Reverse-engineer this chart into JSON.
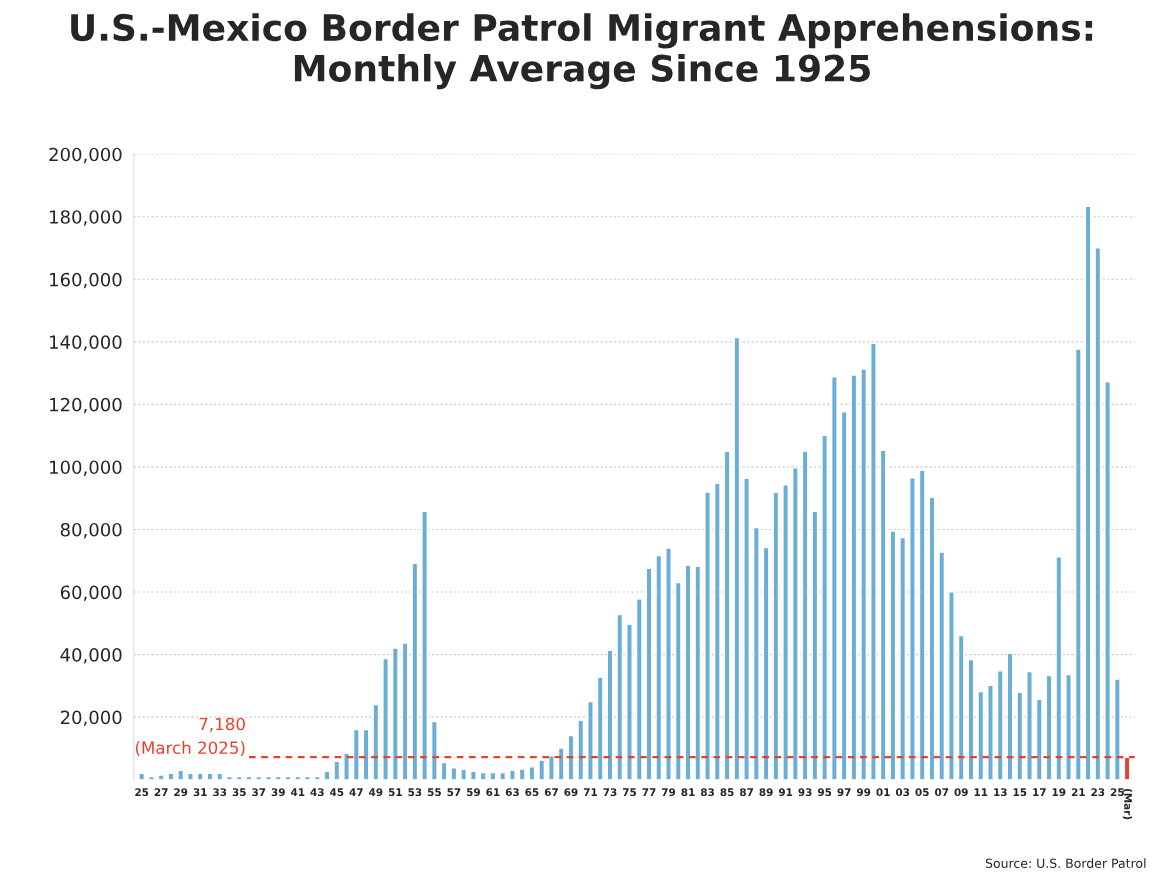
{
  "chart_data": {
    "type": "bar",
    "title": "U.S.-Mexico Border Patrol Migrant Apprehensions: Monthly Average Since 1925",
    "categories": [
      "25",
      null,
      "27",
      null,
      "29",
      null,
      "31",
      null,
      "33",
      null,
      "35",
      null,
      "37",
      null,
      "39",
      null,
      "41",
      null,
      "43",
      null,
      "45",
      null,
      "47",
      null,
      "49",
      null,
      "51",
      null,
      "53",
      null,
      "55",
      null,
      "57",
      null,
      "59",
      null,
      "61",
      null,
      "63",
      null,
      "65",
      null,
      "67",
      null,
      "69",
      null,
      "71",
      null,
      "73",
      null,
      "75",
      null,
      "77",
      null,
      "79",
      null,
      "81",
      null,
      "83",
      null,
      "85",
      null,
      "87",
      null,
      "89",
      null,
      "91",
      null,
      "93",
      null,
      "95",
      null,
      "97",
      null,
      "99",
      null,
      "01",
      null,
      "03",
      null,
      "05",
      null,
      "07",
      null,
      "09",
      null,
      "11",
      null,
      "13",
      null,
      "15",
      null,
      "17",
      null,
      "19",
      null,
      "21",
      null,
      "23",
      null,
      "25",
      "(Mar)"
    ],
    "values": [
      2000,
      1000,
      1500,
      2000,
      3000,
      2000,
      2000,
      2000,
      2000,
      1000,
      1000,
      1000,
      1000,
      1000,
      1000,
      1000,
      1000,
      1000,
      1000,
      2700,
      5900,
      8400,
      16000,
      16000,
      24000,
      38700,
      42100,
      43700,
      69200,
      85800,
      18600,
      5500,
      3800,
      3300,
      2700,
      2300,
      2300,
      2300,
      3000,
      3400,
      4100,
      6300,
      7600,
      10100,
      14100,
      19000,
      25000,
      32800,
      41400,
      52800,
      49700,
      57800,
      67600,
      71700,
      74100,
      63000,
      68600,
      68200,
      92000,
      94800,
      105000,
      141400,
      96400,
      80600,
      74200,
      91900,
      94300,
      99700,
      105100,
      85800,
      110100,
      128800,
      117600,
      129400,
      131300,
      139500,
      105300,
      79500,
      77400,
      96500,
      98900,
      90300,
      72800,
      60100,
      46100,
      38400,
      28200,
      30200,
      34800,
      40400,
      27900,
      34600,
      25700,
      33300,
      71300,
      33600,
      137700,
      183300,
      170100,
      127200,
      32200,
      7180
    ],
    "colors": [
      "#6aaed6",
      "#6aaed6",
      "#6aaed6",
      "#6aaed6",
      "#6aaed6",
      "#6aaed6",
      "#6aaed6",
      "#6aaed6",
      "#6aaed6",
      "#6aaed6",
      "#6aaed6",
      "#6aaed6",
      "#6aaed6",
      "#6aaed6",
      "#6aaed6",
      "#6aaed6",
      "#6aaed6",
      "#6aaed6",
      "#6aaed6",
      "#6aaed6",
      "#6aaed6",
      "#6aaed6",
      "#6aaed6",
      "#6aaed6",
      "#6aaed6",
      "#6aaed6",
      "#6aaed6",
      "#6aaed6",
      "#6aaed6",
      "#6aaed6",
      "#6aaed6",
      "#6aaed6",
      "#6aaed6",
      "#6aaed6",
      "#6aaed6",
      "#6aaed6",
      "#6aaed6",
      "#6aaed6",
      "#6aaed6",
      "#6aaed6",
      "#6aaed6",
      "#6aaed6",
      "#6aaed6",
      "#6aaed6",
      "#6aaed6",
      "#6aaed6",
      "#6aaed6",
      "#6aaed6",
      "#6aaed6",
      "#6aaed6",
      "#6aaed6",
      "#6aaed6",
      "#6aaed6",
      "#6aaed6",
      "#6aaed6",
      "#6aaed6",
      "#6aaed6",
      "#6aaed6",
      "#6aaed6",
      "#6aaed6",
      "#6aaed6",
      "#6aaed6",
      "#6aaed6",
      "#6aaed6",
      "#6aaed6",
      "#6aaed6",
      "#6aaed6",
      "#6aaed6",
      "#6aaed6",
      "#6aaed6",
      "#6aaed6",
      "#6aaed6",
      "#6aaed6",
      "#6aaed6",
      "#6aaed6",
      "#6aaed6",
      "#6aaed6",
      "#6aaed6",
      "#6aaed6",
      "#6aaed6",
      "#6aaed6",
      "#6aaed6",
      "#6aaed6",
      "#6aaed6",
      "#6aaed6",
      "#6aaed6",
      "#6aaed6",
      "#6aaed6",
      "#6aaed6",
      "#6aaed6",
      "#6aaed6",
      "#6aaed6",
      "#6aaed6",
      "#6aaed6",
      "#6aaed6",
      "#6aaed6",
      "#6aaed6",
      "#6aaed6",
      "#6aaed6",
      "#6aaed6",
      "#6aaed6",
      "#e8402e"
    ],
    "ylim": [
      0,
      200000
    ],
    "yticks": [
      {
        "value": 20000,
        "label": "20,000"
      },
      {
        "value": 40000,
        "label": "40,000"
      },
      {
        "value": 60000,
        "label": "60,000"
      },
      {
        "value": 80000,
        "label": "80,000"
      },
      {
        "value": 100000,
        "label": "100,000"
      },
      {
        "value": 120000,
        "label": "120,000"
      },
      {
        "value": 140000,
        "label": "140,000"
      },
      {
        "value": 160000,
        "label": "160,000"
      },
      {
        "value": 180000,
        "label": "180,000"
      },
      {
        "value": 200000,
        "label": "200,000"
      }
    ],
    "grid": "y",
    "ref_lines": [
      {
        "axis": "y",
        "value": 7180,
        "label": "7,180\n(March 2025)",
        "color": "#e8402e",
        "line_style": "dashed"
      }
    ],
    "annotations": [
      "Source: U.S. Border Patrol"
    ]
  }
}
